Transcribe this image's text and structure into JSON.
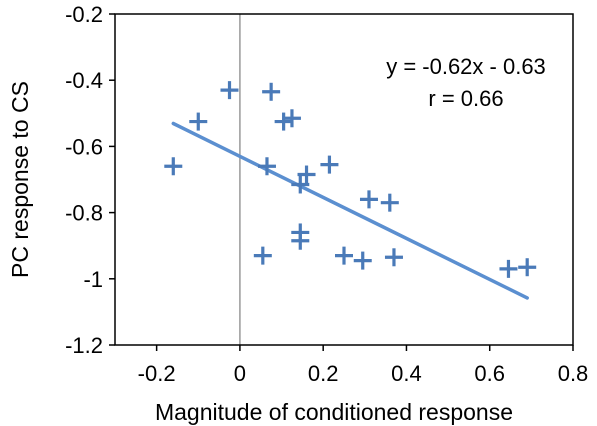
{
  "chart_data": {
    "type": "scatter",
    "xlabel": "Magnitude of conditioned response",
    "ylabel": "PC response to CS",
    "xlim": [
      -0.3,
      0.8
    ],
    "ylim": [
      -1.2,
      -0.2
    ],
    "xticks": [
      -0.2,
      0,
      0.2,
      0.4,
      0.6,
      0.8
    ],
    "yticks": [
      -0.2,
      -0.4,
      -0.6,
      -0.8,
      -1,
      -1.2
    ],
    "xtick_labels": [
      "-0.2",
      "0",
      "0.2",
      "0.4",
      "0.6",
      "0.8"
    ],
    "ytick_labels": [
      "-0.2",
      "-0.4",
      "-0.6",
      "-0.8",
      "-1",
      "-1.2"
    ],
    "grid": false,
    "reference_line_x": 0,
    "points": [
      {
        "x": -0.16,
        "y": -0.66
      },
      {
        "x": -0.1,
        "y": -0.525
      },
      {
        "x": -0.025,
        "y": -0.43
      },
      {
        "x": 0.055,
        "y": -0.93
      },
      {
        "x": 0.065,
        "y": -0.66
      },
      {
        "x": 0.075,
        "y": -0.435
      },
      {
        "x": 0.105,
        "y": -0.525
      },
      {
        "x": 0.125,
        "y": -0.515
      },
      {
        "x": 0.145,
        "y": -0.715
      },
      {
        "x": 0.145,
        "y": -0.86
      },
      {
        "x": 0.145,
        "y": -0.885
      },
      {
        "x": 0.16,
        "y": -0.685
      },
      {
        "x": 0.215,
        "y": -0.655
      },
      {
        "x": 0.25,
        "y": -0.93
      },
      {
        "x": 0.295,
        "y": -0.945
      },
      {
        "x": 0.31,
        "y": -0.76
      },
      {
        "x": 0.36,
        "y": -0.77
      },
      {
        "x": 0.37,
        "y": -0.935
      },
      {
        "x": 0.645,
        "y": -0.97
      },
      {
        "x": 0.69,
        "y": -0.965
      }
    ],
    "fit": {
      "slope": -0.62,
      "intercept": -0.63,
      "x_range": [
        -0.16,
        0.69
      ]
    },
    "annotation": {
      "equation": "y = -0.62x - 0.63",
      "r": "r = 0.66",
      "position": "top-right"
    },
    "colors": {
      "marker": "#4a7ab8",
      "fit_line": "#5b8fd0",
      "reference_line": "#999999",
      "frame": "#000000"
    }
  }
}
